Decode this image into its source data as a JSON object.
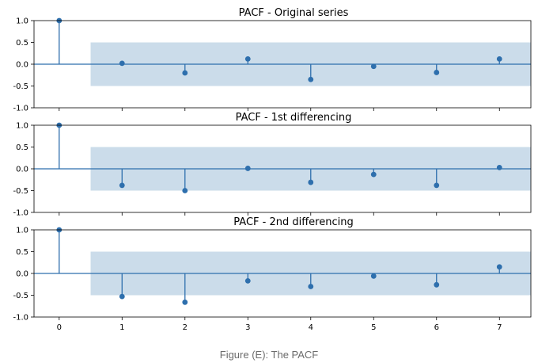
{
  "caption": "Figure (E): The PACF",
  "colors": {
    "stem": "#2e6fad",
    "confidence_band": "#cbdcea",
    "zero_line": "#2e6fad",
    "frame": "#000000"
  },
  "chart_data": [
    {
      "type": "stem",
      "title": "PACF - Original series",
      "x": [
        0,
        1,
        2,
        3,
        4,
        5,
        6,
        7
      ],
      "values": [
        1.0,
        0.02,
        -0.2,
        0.12,
        -0.35,
        -0.05,
        -0.19,
        0.12
      ],
      "confidence_interval": [
        -0.5,
        0.5
      ],
      "xlim": [
        -0.4,
        7.5
      ],
      "ylim": [
        -1.0,
        1.0
      ],
      "yticks": [
        "1.0",
        "0.5",
        "0.0",
        "-0.5",
        "-1.0"
      ],
      "show_xtick_labels": false
    },
    {
      "type": "stem",
      "title": "PACF - 1st differencing",
      "x": [
        0,
        1,
        2,
        3,
        4,
        5,
        6,
        7
      ],
      "values": [
        1.0,
        -0.38,
        -0.5,
        0.01,
        -0.31,
        -0.13,
        -0.38,
        0.03
      ],
      "confidence_interval": [
        -0.5,
        0.5
      ],
      "xlim": [
        -0.4,
        7.5
      ],
      "ylim": [
        -1.0,
        1.0
      ],
      "yticks": [
        "1.0",
        "0.5",
        "0.0",
        "-0.5",
        "-1.0"
      ],
      "show_xtick_labels": false
    },
    {
      "type": "stem",
      "title": "PACF - 2nd differencing",
      "x": [
        0,
        1,
        2,
        3,
        4,
        5,
        6,
        7
      ],
      "values": [
        1.0,
        -0.53,
        -0.66,
        -0.17,
        -0.3,
        -0.06,
        -0.26,
        0.15
      ],
      "confidence_interval": [
        -0.5,
        0.5
      ],
      "xlim": [
        -0.4,
        7.5
      ],
      "ylim": [
        -1.0,
        1.0
      ],
      "yticks": [
        "1.0",
        "0.5",
        "0.0",
        "-0.5",
        "-1.0"
      ],
      "xticks": [
        "0",
        "1",
        "2",
        "3",
        "4",
        "5",
        "6",
        "7"
      ],
      "show_xtick_labels": true
    }
  ]
}
